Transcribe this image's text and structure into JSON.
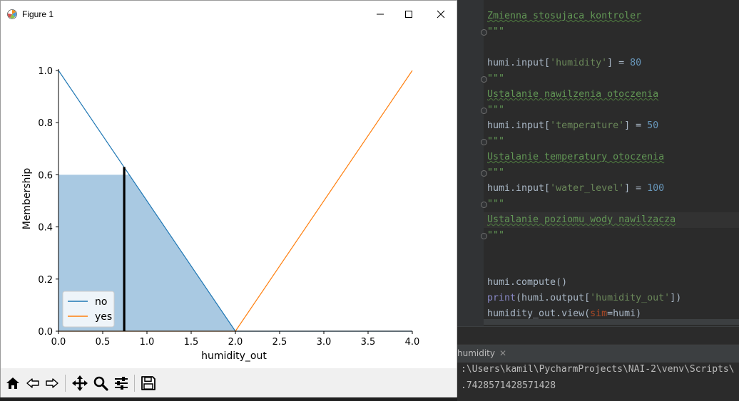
{
  "window": {
    "title": "Figure 1",
    "icon": "matplotlib-icon"
  },
  "chart_data": {
    "type": "line",
    "xlabel": "humidity_out",
    "ylabel": "Membership",
    "xlim": [
      0.0,
      4.0
    ],
    "ylim": [
      0.0,
      1.0
    ],
    "x_ticks": [
      "0.0",
      "0.5",
      "1.0",
      "1.5",
      "2.0",
      "2.5",
      "3.0",
      "3.5",
      "4.0"
    ],
    "y_ticks": [
      "0.0",
      "0.2",
      "0.4",
      "0.6",
      "0.8",
      "1.0"
    ],
    "series": [
      {
        "name": "no",
        "color": "#1f77b4",
        "x": [
          0.0,
          2.0,
          4.0
        ],
        "y": [
          1.0,
          0.0,
          0.0
        ]
      },
      {
        "name": "yes",
        "color": "#ff7f0e",
        "x": [
          0.0,
          2.0,
          4.0
        ],
        "y": [
          0.0,
          0.0,
          1.0
        ]
      }
    ],
    "activation_fill": {
      "color": "#a9c9e2",
      "x": [
        0.0,
        0.8,
        2.0
      ],
      "y": [
        0.6,
        0.6,
        0.0
      ]
    },
    "crisp_output_line": {
      "x": 0.7428571428571428,
      "y_top": 0.63,
      "color": "#000000"
    },
    "legend_position": "lower-left",
    "grid": false
  },
  "toolbar": {
    "buttons": [
      "home-icon",
      "back-icon",
      "forward-icon",
      "pan-icon",
      "zoom-icon",
      "configure-subplots-icon",
      "save-icon"
    ]
  },
  "editor": {
    "lines": [
      {
        "kind": "doc",
        "text": "Zmienna stosujaca kontroler"
      },
      {
        "kind": "quote",
        "text": "\"\"\""
      },
      {
        "kind": "blank",
        "text": ""
      },
      {
        "kind": "code",
        "prefix": "humi.input[",
        "str": "'humidity'",
        "mid": "] = ",
        "num": "80"
      },
      {
        "kind": "quote",
        "text": "\"\"\""
      },
      {
        "kind": "doc",
        "text": "Ustalanie nawilzenia otoczenia"
      },
      {
        "kind": "quote",
        "text": "\"\"\""
      },
      {
        "kind": "code",
        "prefix": "humi.input[",
        "str": "'temperature'",
        "mid": "] = ",
        "num": "50"
      },
      {
        "kind": "quote",
        "text": "\"\"\""
      },
      {
        "kind": "doc",
        "text": "Ustalanie temperatury otoczenia"
      },
      {
        "kind": "quote",
        "text": "\"\"\""
      },
      {
        "kind": "code",
        "prefix": "humi.input[",
        "str": "'water_level'",
        "mid": "] = ",
        "num": "100"
      },
      {
        "kind": "quote",
        "text": "\"\"\""
      },
      {
        "kind": "doc",
        "text": "Ustalanie poziomu wody nawilzacza"
      },
      {
        "kind": "quote",
        "text": "\"\"\""
      },
      {
        "kind": "blank",
        "text": ""
      },
      {
        "kind": "blank",
        "text": ""
      },
      {
        "kind": "plain",
        "text": "humi.compute()"
      },
      {
        "kind": "print",
        "kw": "print",
        "prefix": "(humi.output[",
        "str": "'humidity_out'",
        "mid": "])"
      },
      {
        "kind": "view",
        "prefix": "humidity_out.view(",
        "param": "sim",
        "mid": "=humi)"
      }
    ]
  },
  "run_panel": {
    "tab_label": "humidity",
    "path_line": ":\\Users\\kamil\\PycharmProjects\\NAI-2\\venv\\Scripts\\",
    "output_line": ".7428571428571428"
  }
}
